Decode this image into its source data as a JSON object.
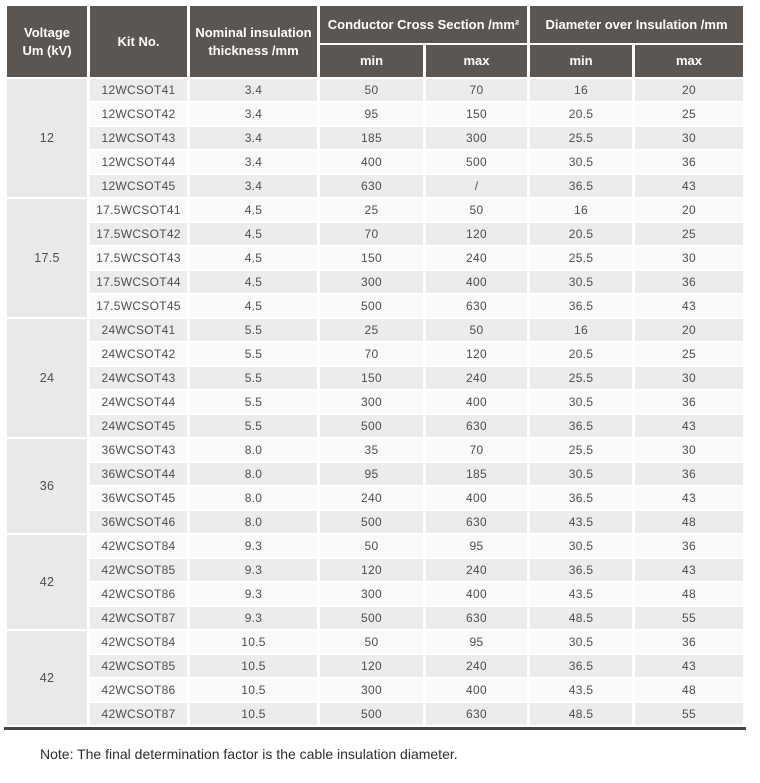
{
  "table": {
    "headers": {
      "voltage": "Voltage\nUm (kV)",
      "kit_no": "Kit No.",
      "nominal": "Nominal insulation\nthickness /mm",
      "conductor_cross_section": "Conductor Cross Section /mm²",
      "diameter_over_insulation": "Diameter over Insulation /mm",
      "min": "min",
      "max": "max"
    },
    "groups": [
      {
        "voltage": "12",
        "rows": [
          {
            "kit": "12WCSOT41",
            "thickness": "3.4",
            "ccs_min": "50",
            "ccs_max": "70",
            "doi_min": "16",
            "doi_max": "20"
          },
          {
            "kit": "12WCSOT42",
            "thickness": "3.4",
            "ccs_min": "95",
            "ccs_max": "150",
            "doi_min": "20.5",
            "doi_max": "25"
          },
          {
            "kit": "12WCSOT43",
            "thickness": "3.4",
            "ccs_min": "185",
            "ccs_max": "300",
            "doi_min": "25.5",
            "doi_max": "30"
          },
          {
            "kit": "12WCSOT44",
            "thickness": "3.4",
            "ccs_min": "400",
            "ccs_max": "500",
            "doi_min": "30.5",
            "doi_max": "36"
          },
          {
            "kit": "12WCSOT45",
            "thickness": "3.4",
            "ccs_min": "630",
            "ccs_max": "/",
            "doi_min": "36.5",
            "doi_max": "43"
          }
        ]
      },
      {
        "voltage": "17.5",
        "rows": [
          {
            "kit": "17.5WCSOT41",
            "thickness": "4.5",
            "ccs_min": "25",
            "ccs_max": "50",
            "doi_min": "16",
            "doi_max": "20"
          },
          {
            "kit": "17.5WCSOT42",
            "thickness": "4.5",
            "ccs_min": "70",
            "ccs_max": "120",
            "doi_min": "20.5",
            "doi_max": "25"
          },
          {
            "kit": "17.5WCSOT43",
            "thickness": "4.5",
            "ccs_min": "150",
            "ccs_max": "240",
            "doi_min": "25.5",
            "doi_max": "30"
          },
          {
            "kit": "17.5WCSOT44",
            "thickness": "4.5",
            "ccs_min": "300",
            "ccs_max": "400",
            "doi_min": "30.5",
            "doi_max": "36"
          },
          {
            "kit": "17.5WCSOT45",
            "thickness": "4.5",
            "ccs_min": "500",
            "ccs_max": "630",
            "doi_min": "36.5",
            "doi_max": "43"
          }
        ]
      },
      {
        "voltage": "24",
        "rows": [
          {
            "kit": "24WCSOT41",
            "thickness": "5.5",
            "ccs_min": "25",
            "ccs_max": "50",
            "doi_min": "16",
            "doi_max": "20"
          },
          {
            "kit": "24WCSOT42",
            "thickness": "5.5",
            "ccs_min": "70",
            "ccs_max": "120",
            "doi_min": "20.5",
            "doi_max": "25"
          },
          {
            "kit": "24WCSOT43",
            "thickness": "5.5",
            "ccs_min": "150",
            "ccs_max": "240",
            "doi_min": "25.5",
            "doi_max": "30"
          },
          {
            "kit": "24WCSOT44",
            "thickness": "5.5",
            "ccs_min": "300",
            "ccs_max": "400",
            "doi_min": "30.5",
            "doi_max": "36"
          },
          {
            "kit": "24WCSOT45",
            "thickness": "5.5",
            "ccs_min": "500",
            "ccs_max": "630",
            "doi_min": "36.5",
            "doi_max": "43"
          }
        ]
      },
      {
        "voltage": "36",
        "rows": [
          {
            "kit": "36WCSOT43",
            "thickness": "8.0",
            "ccs_min": "35",
            "ccs_max": "70",
            "doi_min": "25.5",
            "doi_max": "30"
          },
          {
            "kit": "36WCSOT44",
            "thickness": "8.0",
            "ccs_min": "95",
            "ccs_max": "185",
            "doi_min": "30.5",
            "doi_max": "36"
          },
          {
            "kit": "36WCSOT45",
            "thickness": "8.0",
            "ccs_min": "240",
            "ccs_max": "400",
            "doi_min": "36.5",
            "doi_max": "43"
          },
          {
            "kit": "36WCSOT46",
            "thickness": "8.0",
            "ccs_min": "500",
            "ccs_max": "630",
            "doi_min": "43.5",
            "doi_max": "48"
          }
        ]
      },
      {
        "voltage": "42",
        "rows": [
          {
            "kit": "42WCSOT84",
            "thickness": "9.3",
            "ccs_min": "50",
            "ccs_max": "95",
            "doi_min": "30.5",
            "doi_max": "36"
          },
          {
            "kit": "42WCSOT85",
            "thickness": "9.3",
            "ccs_min": "120",
            "ccs_max": "240",
            "doi_min": "36.5",
            "doi_max": "43"
          },
          {
            "kit": "42WCSOT86",
            "thickness": "9.3",
            "ccs_min": "300",
            "ccs_max": "400",
            "doi_min": "43.5",
            "doi_max": "48"
          },
          {
            "kit": "42WCSOT87",
            "thickness": "9.3",
            "ccs_min": "500",
            "ccs_max": "630",
            "doi_min": "48.5",
            "doi_max": "55"
          }
        ]
      },
      {
        "voltage": "42",
        "rows": [
          {
            "kit": "42WCSOT84",
            "thickness": "10.5",
            "ccs_min": "50",
            "ccs_max": "95",
            "doi_min": "30.5",
            "doi_max": "36"
          },
          {
            "kit": "42WCSOT85",
            "thickness": "10.5",
            "ccs_min": "120",
            "ccs_max": "240",
            "doi_min": "36.5",
            "doi_max": "43"
          },
          {
            "kit": "42WCSOT86",
            "thickness": "10.5",
            "ccs_min": "300",
            "ccs_max": "400",
            "doi_min": "43.5",
            "doi_max": "48"
          },
          {
            "kit": "42WCSOT87",
            "thickness": "10.5",
            "ccs_min": "500",
            "ccs_max": "630",
            "doi_min": "48.5",
            "doi_max": "55"
          }
        ]
      }
    ]
  },
  "note": "Note: The final determination factor is the cable insulation diameter.",
  "colors": {
    "header_bg": "#5b5651",
    "header_text": "#ffffff",
    "row_gray": "#ececec",
    "row_white": "#fafafa",
    "voltage_bg": "#e9e9e9",
    "rule": "#454545",
    "body_text": "#4e4e4e",
    "note_text": "#2f2f2f"
  }
}
